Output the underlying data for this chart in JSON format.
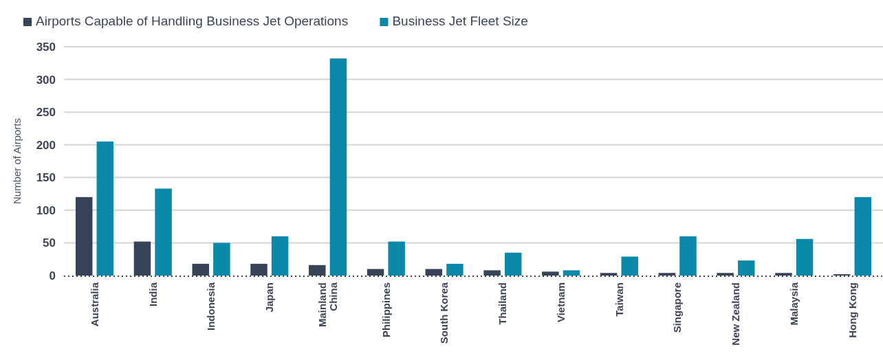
{
  "chart_data": {
    "type": "bar",
    "ylabel": "Number of Airports",
    "categories": [
      "Australia",
      "India",
      "Indonesia",
      "Japan",
      "Mainland China",
      "Philippines",
      "South Korea",
      "Thailand",
      "Vietnam",
      "Taiwan",
      "Singapore",
      "New Zealand",
      "Malaysia",
      "Hong Kong"
    ],
    "series": [
      {
        "name": "Airports Capable of Handling Business Jet Operations",
        "color": "#374458",
        "values": [
          120,
          52,
          18,
          18,
          16,
          10,
          10,
          8,
          6,
          4,
          4,
          4,
          4,
          2
        ]
      },
      {
        "name": "Business Jet Fleet Size",
        "color": "#0b89a8",
        "values": [
          205,
          133,
          50,
          60,
          332,
          52,
          18,
          35,
          8,
          29,
          60,
          23,
          56,
          120
        ]
      }
    ],
    "ylim": [
      0,
      350
    ],
    "yticks": [
      0,
      50,
      100,
      150,
      200,
      250,
      300,
      350
    ],
    "grid": "y",
    "legend": "top left"
  }
}
